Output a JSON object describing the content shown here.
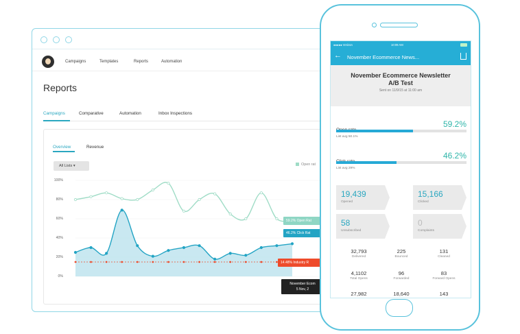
{
  "browser": {
    "nav": [
      "Campaigns",
      "Templates",
      "Reports",
      "Automation"
    ],
    "page_title": "Reports",
    "tabs": [
      "Campaigns",
      "Comparative",
      "Automation",
      "Inbox Inspections"
    ],
    "subtabs": [
      "Overview",
      "Revenue"
    ],
    "lists_button": "All Lists",
    "legend_open": "Open rat",
    "tooltips": {
      "open": "59.2% Open Rat",
      "click": "46.2% Click Rat",
      "industry": "14.48% Industry R",
      "date_line1": "November Ecom",
      "date_line2": "5 Nov, 2"
    }
  },
  "chart_data": {
    "type": "area",
    "ytick_labels": [
      "100%",
      "80%",
      "60%",
      "40%",
      "20%",
      "0%"
    ],
    "ylim": [
      0,
      100
    ],
    "series": [
      {
        "values": [
          80,
          83,
          87,
          81,
          80,
          90,
          97,
          68,
          80,
          86,
          65,
          60,
          87,
          60,
          58
        ]
      },
      {
        "values": [
          25,
          30,
          24,
          69,
          32,
          21,
          27,
          30,
          32,
          18,
          24,
          22,
          30,
          32,
          34
        ]
      },
      {
        "values": [
          15,
          15,
          15,
          15,
          15,
          15,
          15,
          15,
          15,
          15,
          15,
          15,
          15,
          15,
          15
        ]
      }
    ],
    "colors": {
      "open": "#9fdcc6",
      "click": "#23a4c4",
      "industry": "#ee4b2b"
    },
    "grid": true
  },
  "phone": {
    "status": {
      "carrier": "●●●●● Verizon",
      "time": "10:09 AM"
    },
    "app_title": "November Ecommerce News...",
    "report_title": "November Ecommerce Newsletter A/B Test",
    "sent": "Sent on 11/9/15 at 11:00 am",
    "open_rate": {
      "label": "Open rate",
      "value": "59.2%",
      "fill": 0.592,
      "avg": "List avg 50.1%"
    },
    "click_rate": {
      "label": "Click rate",
      "value": "46.2%",
      "fill": 0.462,
      "avg": "List avg 29%"
    },
    "badges": [
      {
        "value": "19,439",
        "label": "Opened"
      },
      {
        "value": "15,166",
        "label": "Clicked"
      },
      {
        "value": "58",
        "label": "Unsubscribed"
      },
      {
        "value": "0",
        "label": "Complaints"
      }
    ],
    "stats": [
      {
        "value": "32,793",
        "label": "Delivered"
      },
      {
        "value": "225",
        "label": "Bounced"
      },
      {
        "value": "131",
        "label": "Cleaned"
      },
      {
        "value": "4,1102",
        "label": "Total Opens"
      },
      {
        "value": "96",
        "label": "Forwarded"
      },
      {
        "value": "83",
        "label": "Forward Opens"
      },
      {
        "value": "27,982",
        "label": ""
      },
      {
        "value": "18,640",
        "label": ""
      },
      {
        "value": "143",
        "label": ""
      }
    ]
  }
}
